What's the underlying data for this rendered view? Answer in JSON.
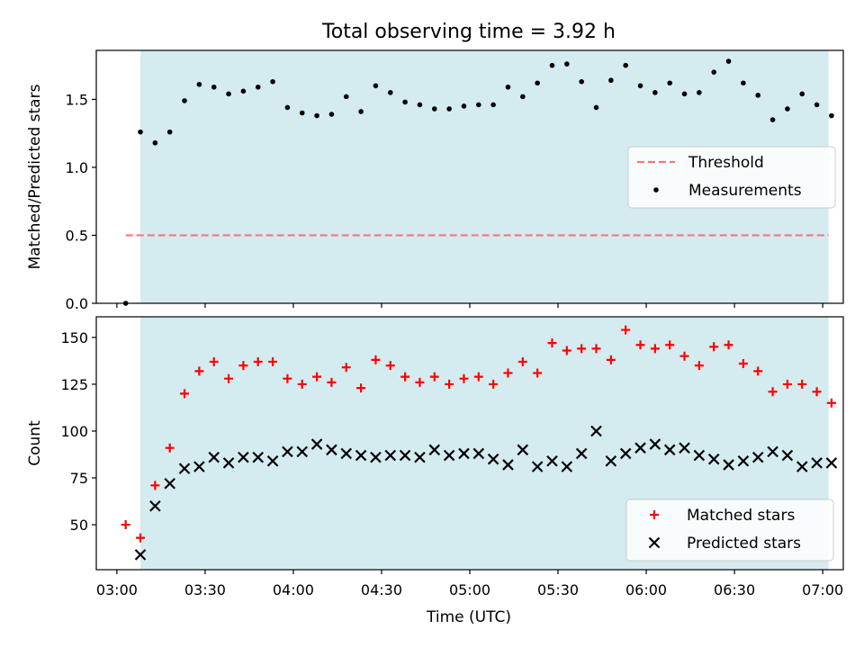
{
  "title": "Total observing time = 3.92 h",
  "xlabel": "Time (UTC)",
  "x_ticks": [
    "03:00",
    "03:30",
    "04:00",
    "04:30",
    "05:00",
    "05:30",
    "06:00",
    "06:30",
    "07:00"
  ],
  "colors": {
    "shade": "#d4ebf0",
    "threshold": "#f07878",
    "measurement": "#000000",
    "matched": "#ff0000",
    "predicted": "#000000"
  },
  "chart_data": [
    {
      "type": "scatter",
      "ylabel": "Matched/Predicted stars",
      "xlim": [
        "02:53",
        "07:07"
      ],
      "ylim": [
        0,
        1.86
      ],
      "y_ticks": [
        "0.0",
        "0.5",
        "1.0",
        "1.5"
      ],
      "observing_window": [
        "03:08",
        "07:02"
      ],
      "threshold": {
        "name": "Threshold",
        "value": 0.5,
        "x_range": [
          "03:03",
          "07:02"
        ]
      },
      "series": [
        {
          "name": "Measurements",
          "points": [
            [
              "03:03",
              0.0
            ],
            [
              "03:08",
              1.26
            ],
            [
              "03:13",
              1.18
            ],
            [
              "03:18",
              1.26
            ],
            [
              "03:23",
              1.49
            ],
            [
              "03:28",
              1.61
            ],
            [
              "03:33",
              1.59
            ],
            [
              "03:38",
              1.54
            ],
            [
              "03:43",
              1.56
            ],
            [
              "03:48",
              1.59
            ],
            [
              "03:53",
              1.63
            ],
            [
              "03:58",
              1.44
            ],
            [
              "04:03",
              1.4
            ],
            [
              "04:08",
              1.38
            ],
            [
              "04:13",
              1.39
            ],
            [
              "04:18",
              1.52
            ],
            [
              "04:23",
              1.41
            ],
            [
              "04:28",
              1.6
            ],
            [
              "04:33",
              1.55
            ],
            [
              "04:38",
              1.48
            ],
            [
              "04:43",
              1.46
            ],
            [
              "04:48",
              1.43
            ],
            [
              "04:53",
              1.43
            ],
            [
              "04:58",
              1.45
            ],
            [
              "05:03",
              1.46
            ],
            [
              "05:08",
              1.46
            ],
            [
              "05:13",
              1.59
            ],
            [
              "05:18",
              1.52
            ],
            [
              "05:23",
              1.62
            ],
            [
              "05:28",
              1.75
            ],
            [
              "05:33",
              1.76
            ],
            [
              "05:38",
              1.63
            ],
            [
              "05:43",
              1.44
            ],
            [
              "05:48",
              1.64
            ],
            [
              "05:53",
              1.75
            ],
            [
              "05:58",
              1.6
            ],
            [
              "06:03",
              1.55
            ],
            [
              "06:08",
              1.62
            ],
            [
              "06:13",
              1.54
            ],
            [
              "06:18",
              1.55
            ],
            [
              "06:23",
              1.7
            ],
            [
              "06:28",
              1.78
            ],
            [
              "06:33",
              1.62
            ],
            [
              "06:38",
              1.53
            ],
            [
              "06:43",
              1.35
            ],
            [
              "06:48",
              1.43
            ],
            [
              "06:53",
              1.54
            ],
            [
              "06:58",
              1.46
            ],
            [
              "07:03",
              1.38
            ]
          ]
        }
      ],
      "legend": [
        "Threshold",
        "Measurements"
      ],
      "legend_position": "center-right"
    },
    {
      "type": "scatter",
      "ylabel": "Count",
      "xlim": [
        "02:53",
        "07:07"
      ],
      "ylim": [
        26,
        161
      ],
      "y_ticks": [
        "50",
        "75",
        "100",
        "125",
        "150"
      ],
      "observing_window": [
        "03:08",
        "07:02"
      ],
      "series": [
        {
          "name": "Matched stars",
          "marker": "plus",
          "points": [
            [
              "03:03",
              50
            ],
            [
              "03:08",
              43
            ],
            [
              "03:13",
              71
            ],
            [
              "03:18",
              91
            ],
            [
              "03:23",
              120
            ],
            [
              "03:28",
              132
            ],
            [
              "03:33",
              137
            ],
            [
              "03:38",
              128
            ],
            [
              "03:43",
              135
            ],
            [
              "03:48",
              137
            ],
            [
              "03:53",
              137
            ],
            [
              "03:58",
              128
            ],
            [
              "04:03",
              125
            ],
            [
              "04:08",
              129
            ],
            [
              "04:13",
              126
            ],
            [
              "04:18",
              134
            ],
            [
              "04:23",
              123
            ],
            [
              "04:28",
              138
            ],
            [
              "04:33",
              135
            ],
            [
              "04:38",
              129
            ],
            [
              "04:43",
              126
            ],
            [
              "04:48",
              129
            ],
            [
              "04:53",
              125
            ],
            [
              "04:58",
              128
            ],
            [
              "05:03",
              129
            ],
            [
              "05:08",
              125
            ],
            [
              "05:13",
              131
            ],
            [
              "05:18",
              137
            ],
            [
              "05:23",
              131
            ],
            [
              "05:28",
              147
            ],
            [
              "05:33",
              143
            ],
            [
              "05:38",
              144
            ],
            [
              "05:43",
              144
            ],
            [
              "05:48",
              138
            ],
            [
              "05:53",
              154
            ],
            [
              "05:58",
              146
            ],
            [
              "06:03",
              144
            ],
            [
              "06:08",
              146
            ],
            [
              "06:13",
              140
            ],
            [
              "06:18",
              135
            ],
            [
              "06:23",
              145
            ],
            [
              "06:28",
              146
            ],
            [
              "06:33",
              136
            ],
            [
              "06:38",
              132
            ],
            [
              "06:43",
              121
            ],
            [
              "06:48",
              125
            ],
            [
              "06:53",
              125
            ],
            [
              "06:58",
              121
            ],
            [
              "07:03",
              115
            ]
          ]
        },
        {
          "name": "Predicted stars",
          "marker": "x",
          "points": [
            [
              "03:08",
              34
            ],
            [
              "03:13",
              60
            ],
            [
              "03:18",
              72
            ],
            [
              "03:23",
              80
            ],
            [
              "03:28",
              81
            ],
            [
              "03:33",
              86
            ],
            [
              "03:38",
              83
            ],
            [
              "03:43",
              86
            ],
            [
              "03:48",
              86
            ],
            [
              "03:53",
              84
            ],
            [
              "03:58",
              89
            ],
            [
              "04:03",
              89
            ],
            [
              "04:08",
              93
            ],
            [
              "04:13",
              90
            ],
            [
              "04:18",
              88
            ],
            [
              "04:23",
              87
            ],
            [
              "04:28",
              86
            ],
            [
              "04:33",
              87
            ],
            [
              "04:38",
              87
            ],
            [
              "04:43",
              86
            ],
            [
              "04:48",
              90
            ],
            [
              "04:53",
              87
            ],
            [
              "04:58",
              88
            ],
            [
              "05:03",
              88
            ],
            [
              "05:08",
              85
            ],
            [
              "05:13",
              82
            ],
            [
              "05:18",
              90
            ],
            [
              "05:23",
              81
            ],
            [
              "05:28",
              84
            ],
            [
              "05:33",
              81
            ],
            [
              "05:38",
              88
            ],
            [
              "05:43",
              100
            ],
            [
              "05:48",
              84
            ],
            [
              "05:53",
              88
            ],
            [
              "05:58",
              91
            ],
            [
              "06:03",
              93
            ],
            [
              "06:08",
              90
            ],
            [
              "06:13",
              91
            ],
            [
              "06:18",
              87
            ],
            [
              "06:23",
              85
            ],
            [
              "06:28",
              82
            ],
            [
              "06:33",
              84
            ],
            [
              "06:38",
              86
            ],
            [
              "06:43",
              89
            ],
            [
              "06:48",
              87
            ],
            [
              "06:53",
              81
            ],
            [
              "06:58",
              83
            ],
            [
              "07:03",
              83
            ]
          ]
        }
      ],
      "legend": [
        "Matched stars",
        "Predicted stars"
      ],
      "legend_position": "bottom-right"
    }
  ]
}
